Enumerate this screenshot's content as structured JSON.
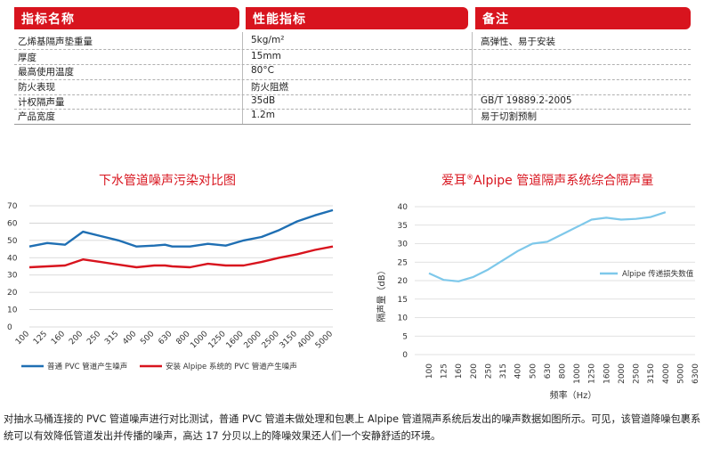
{
  "table": {
    "headers": [
      "指标名称",
      "性能指标",
      "备注"
    ],
    "rows": [
      {
        "name": "乙烯基隔声垫重量",
        "value": "5kg/m²",
        "note": "高弹性、易于安装"
      },
      {
        "name": "厚度",
        "value": "15mm",
        "note": ""
      },
      {
        "name": "最高使用温度",
        "value": "80°C",
        "note": ""
      },
      {
        "name": "防火表现",
        "value": "防火阻燃",
        "note": ""
      },
      {
        "name": "计权隔声量",
        "value": "35dB",
        "note": "GB/T 19889.2-2005"
      },
      {
        "name": "产品宽度",
        "value": "1.2m",
        "note": "易于切割预制"
      }
    ]
  },
  "chart_data": [
    {
      "type": "line",
      "title": "下水管道噪声污染对比图",
      "categories": [
        "100",
        "125",
        "160",
        "200",
        "250",
        "315",
        "400",
        "500",
        "630",
        "800",
        "1000",
        "1250",
        "1600",
        "2000",
        "2500",
        "3150",
        "4000",
        "5000"
      ],
      "ylim": [
        0,
        70
      ],
      "yticks": [
        0,
        10,
        20,
        30,
        40,
        50,
        60,
        70
      ],
      "legend_position": "bottom-left",
      "series": [
        {
          "name": "普通 PVC 管道产生噪声",
          "color": "#1f6fb3",
          "x": [
            0,
            1,
            2,
            3,
            4,
            5,
            6,
            7,
            7.6,
            8,
            9,
            10,
            11,
            12,
            13,
            14,
            15,
            16,
            17
          ],
          "values": [
            46.5,
            48.5,
            47.5,
            55,
            52.5,
            50,
            46.5,
            47,
            47.5,
            46.5,
            46.5,
            48,
            47,
            50,
            52,
            56,
            61,
            64.5,
            67.5
          ]
        },
        {
          "name": "安装 Alpipe 系统的 PVC 管道产生噪声",
          "color": "#d8141e",
          "x": [
            0,
            1,
            2,
            3,
            4,
            5,
            6,
            7,
            7.6,
            8,
            9,
            10,
            11,
            12,
            13,
            14,
            15,
            16,
            17
          ],
          "values": [
            34.5,
            35,
            35.5,
            39,
            37.5,
            36,
            34.5,
            35.5,
            35.5,
            35,
            34.5,
            36.5,
            35.5,
            35.5,
            37.5,
            40,
            42,
            44.5,
            46.5
          ]
        }
      ]
    },
    {
      "type": "line",
      "title_prefix": "爱耳",
      "title_mark": "®",
      "title_suffix": "Alpipe 管道隔声系统综合隔声量",
      "categories": [
        "100",
        "125",
        "160",
        "200",
        "250",
        "315",
        "400",
        "500",
        "630",
        "800",
        "1000",
        "1250",
        "1600",
        "2000",
        "2500",
        "3150",
        "4000",
        "5000",
        "6300"
      ],
      "ylim": [
        0,
        40
      ],
      "yticks": [
        0,
        5,
        10,
        15,
        20,
        25,
        30,
        35,
        40
      ],
      "xlabel": "频率（Hz）",
      "ylabel": "隔声量（dB）",
      "legend_position": "right",
      "series": [
        {
          "name": "Alpipe 传递损失数值",
          "color": "#7ec8ea",
          "x": [
            0,
            1,
            2,
            3,
            4,
            5,
            6,
            7,
            8,
            9,
            10,
            11,
            12,
            13,
            14,
            15,
            16,
            17
          ],
          "values": [
            22,
            20.2,
            19.8,
            21,
            23,
            25.5,
            28,
            30,
            30.5,
            32.5,
            34.5,
            36.5,
            37,
            36.5,
            36.7,
            37.2,
            38.5,
            null
          ]
        }
      ]
    }
  ],
  "caption": "对抽水马桶连接的 PVC 管道噪声进行对比测试，普通 PVC 管道未做处理和包裹上 Alpipe 管道隔声系统后发出的噪声数据如图所示。可见，该管道降噪包裹系统可以有效降低管道发出并传播的噪声，高达 17 分贝以上的降噪效果还人们一个安静舒适的环境。"
}
